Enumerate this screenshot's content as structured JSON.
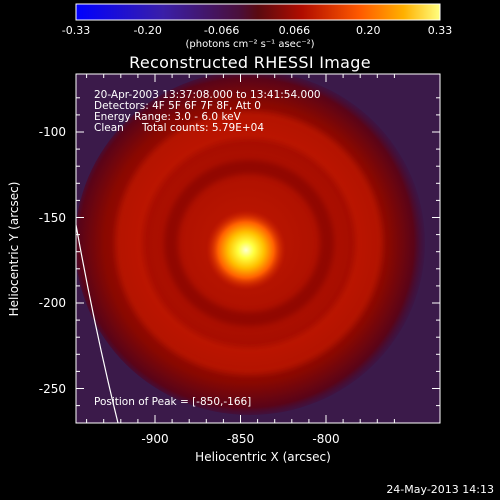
{
  "chart_data": {
    "type": "heatmap",
    "title": "Reconstructed RHESSI Image",
    "xlabel": "Heliocentric X (arcsec)",
    "ylabel": "Heliocentric Y (arcsec)",
    "xlim": [
      -948,
      -840
    ],
    "ylim": [
      -265,
      -75
    ],
    "x_ticks": [
      "-900",
      "-850",
      "-800"
    ],
    "x_tick_values": [
      -900,
      -850,
      -800
    ],
    "y_ticks": [
      "-100",
      "-150",
      "-200",
      "-250"
    ],
    "y_tick_values": [
      -100,
      -150,
      -200,
      -250
    ],
    "colorbar": {
      "ticks": [
        "-0.33",
        "-0.20",
        "-0.066",
        "0.066",
        "0.20",
        "0.33"
      ],
      "tick_values": [
        -0.33,
        -0.2,
        -0.066,
        0.066,
        0.2,
        0.33
      ],
      "range": [
        -0.33,
        0.33
      ],
      "units": "(photons cm⁻² s⁻¹ asec⁻²)"
    },
    "peak": {
      "x": -850,
      "y": -166,
      "value": 0.33
    },
    "annotations": {
      "time": "20-Apr-2003 13:37:08.000 to 13:41:54.000",
      "detectors": "Detectors: 4F 5F 6F 7F 8F, Att 0",
      "energy": "Energy Range: 3.0 - 6.0 keV",
      "clean": "Clean",
      "counts": "Total counts: 5.79E+04",
      "peak_label": "Position of Peak = [-850,-166]"
    }
  },
  "footer": {
    "date": "24-May-2013 14:13"
  },
  "colors": {
    "background": "#000000",
    "text": "#ffffff",
    "limb": "#ffffff"
  }
}
